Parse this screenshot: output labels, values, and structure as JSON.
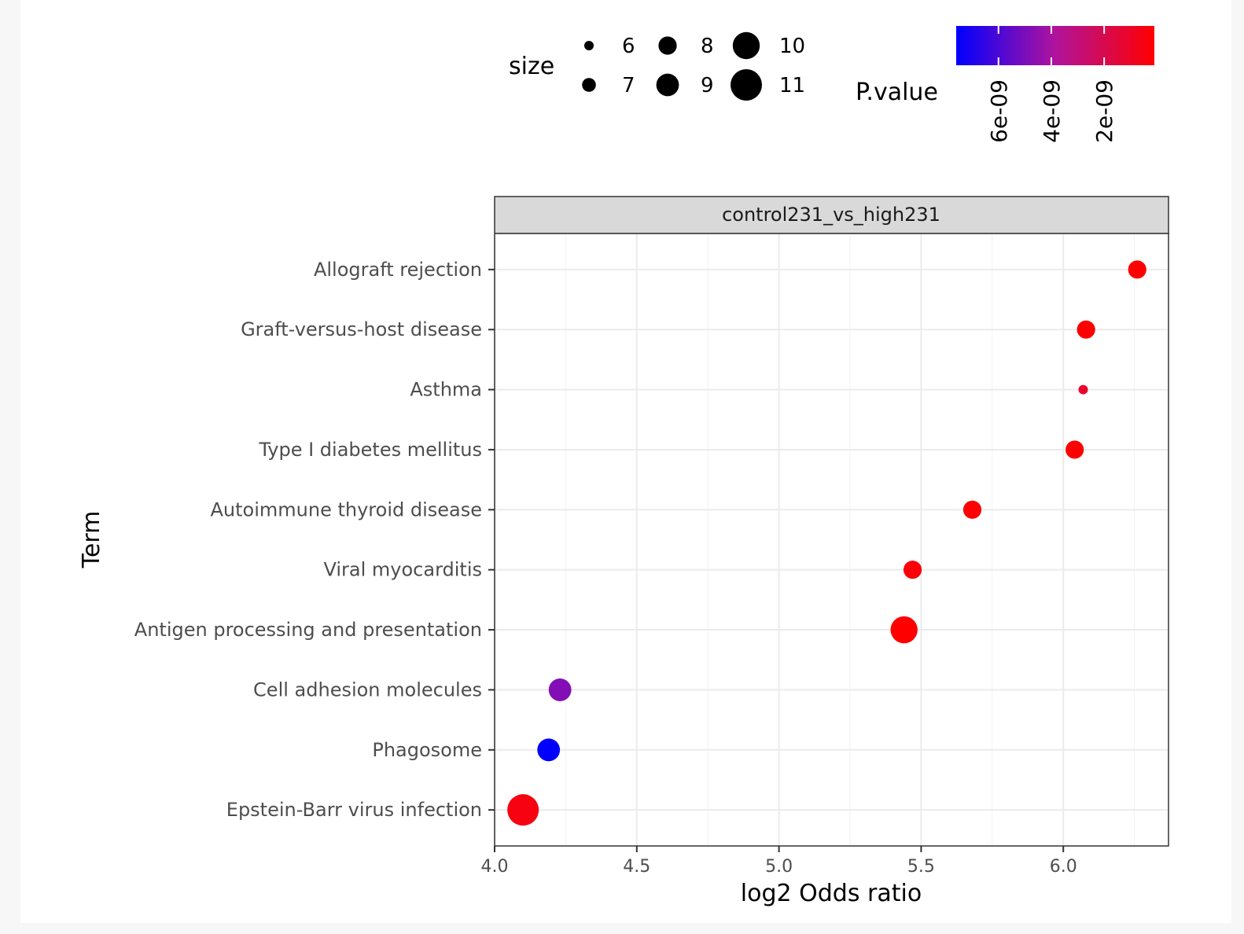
{
  "chart_data": {
    "type": "scatter",
    "facet_label": "control231_vs_high231",
    "xlabel": "log2 Odds ratio",
    "ylabel": "Term",
    "xlim": [
      4.0,
      6.37
    ],
    "x_ticks": [
      4.0,
      4.5,
      5.0,
      5.5,
      6.0
    ],
    "x_tick_labels": [
      "4.0",
      "4.5",
      "5.0",
      "5.5",
      "6.0"
    ],
    "grid": true,
    "categories": [
      "Allograft rejection",
      "Graft-versus-host disease",
      "Asthma",
      "Type I diabetes mellitus",
      "Autoimmune thyroid disease",
      "Viral myocarditis",
      "Antigen processing and presentation",
      "Cell adhesion molecules",
      "Phagosome",
      "Epstein-Barr virus infection"
    ],
    "points": [
      {
        "term": "Allograft rejection",
        "x": 6.26,
        "size": 8,
        "p_value": 1e-10
      },
      {
        "term": "Graft-versus-host disease",
        "x": 6.08,
        "size": 8,
        "p_value": 1.5e-10
      },
      {
        "term": "Asthma",
        "x": 6.07,
        "size": 6,
        "p_value": 1.2e-09
      },
      {
        "term": "Type I diabetes mellitus",
        "x": 6.04,
        "size": 8,
        "p_value": 1.5e-10
      },
      {
        "term": "Autoimmune thyroid disease",
        "x": 5.68,
        "size": 8,
        "p_value": 2e-10
      },
      {
        "term": "Viral myocarditis",
        "x": 5.47,
        "size": 8,
        "p_value": 3e-10
      },
      {
        "term": "Antigen processing and presentation",
        "x": 5.44,
        "size": 10,
        "p_value": 1e-10
      },
      {
        "term": "Cell adhesion molecules",
        "x": 4.23,
        "size": 9,
        "p_value": 4.8e-09
      },
      {
        "term": "Phagosome",
        "x": 4.19,
        "size": 9,
        "p_value": 7.6e-09
      },
      {
        "term": "Epstein-Barr virus infection",
        "x": 4.1,
        "size": 11,
        "p_value": 5e-10
      }
    ],
    "size_legend": {
      "title": "size",
      "entries": [
        {
          "label": "6",
          "value": 6
        },
        {
          "label": "7",
          "value": 7
        },
        {
          "label": "8",
          "value": 8
        },
        {
          "label": "9",
          "value": 9
        },
        {
          "label": "10",
          "value": 10
        },
        {
          "label": "11",
          "value": 11
        }
      ]
    },
    "color_legend": {
      "title": "P.value",
      "p_min": 1e-10,
      "p_max": 7.6e-09,
      "low_color": "#ff0000",
      "high_color": "#0000ff",
      "ticks": [
        {
          "label": "6e-09",
          "value": 6e-09
        },
        {
          "label": "4e-09",
          "value": 4e-09
        },
        {
          "label": "2e-09",
          "value": 2e-09
        }
      ]
    }
  }
}
